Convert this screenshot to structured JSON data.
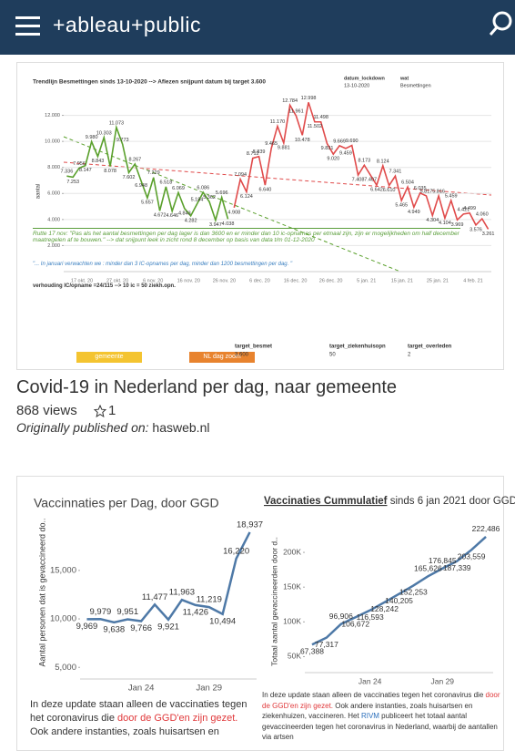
{
  "header": {
    "logo": "+ableau+public"
  },
  "cards": [
    {
      "thumbnail": {
        "chart_data": {
          "type": "line",
          "title": "Trendlijn Besmettingen sinds 13-10-2020 --> Aflezen snijpunt datum bij target 3.600",
          "y_label": "aantal",
          "categories": [
            null,
            null,
            null,
            null,
            null,
            null,
            null,
            null,
            null,
            null,
            null,
            null,
            null,
            null,
            null,
            null,
            null,
            null,
            null,
            null,
            null,
            null,
            null,
            null,
            null,
            null,
            null,
            null,
            null,
            null,
            null,
            null,
            null,
            null,
            null,
            null,
            null,
            null,
            null,
            null,
            null,
            null,
            null,
            null,
            null,
            null,
            null,
            null,
            null,
            null,
            null,
            null,
            null,
            null,
            null,
            null,
            null,
            null,
            null,
            null,
            null,
            null,
            null,
            null,
            null,
            null,
            null,
            null,
            null
          ],
          "xtick_labels": [
            "17 okt. 20",
            "27 okt. 20",
            "6 nov. 20",
            "16 nov. 20",
            "26 nov. 20",
            "6 dec. 20",
            "16 dec. 20",
            "26 dec. 20",
            "5 jan. 21",
            "15 jan. 21",
            "25 jan. 21",
            "4 feb. 21"
          ],
          "ylim": [
            0,
            13300
          ],
          "yticks": [
            {
              "value": 2000,
              "label": "2.000"
            },
            {
              "value": 4000,
              "label": "4.000"
            },
            {
              "value": 6000,
              "label": "6.000"
            },
            {
              "value": 8000,
              "label": "8.000"
            },
            {
              "value": 10000,
              "label": "10.000"
            },
            {
              "value": 12000,
              "label": "12.000"
            }
          ],
          "grid": true,
          "series": [
            {
              "color": "#5aa02c",
              "values": [
                7336,
                7253,
                7956,
                8147,
                9980,
                8843,
                10303,
                8078,
                11073,
                9773,
                7602,
                8267,
                6948,
                5657,
                7229,
                4672,
                6518,
                4646,
                6069,
                4843,
                4282,
                5184,
                6086,
                5362,
                3947,
                5696,
                4038,
                null,
                null,
                null,
                null,
                null,
                null,
                null,
                null,
                null,
                null,
                null,
                null,
                null,
                null,
                null,
                null,
                null,
                null,
                null,
                null,
                null,
                null,
                null,
                null,
                null,
                null,
                null,
                null,
                null,
                null,
                null,
                null,
                null,
                null,
                null,
                null,
                null,
                null,
                null,
                null,
                null,
                null
              ],
              "value_labels": [
                "7.336",
                "7.253",
                "7.956",
                "8.147",
                "9.980",
                "8.843",
                "10.303",
                "8.078",
                "11.073",
                "9.773",
                "7.602",
                "8.267",
                "6.948",
                "5.657",
                "7.229",
                "4.672",
                "6.518",
                "4.646",
                "6.069",
                "4.843",
                "4.282",
                "5.184",
                "6.086",
                "5.362",
                "3.947",
                "5.696",
                "4.038",
                null,
                null,
                null,
                null,
                null,
                null,
                null,
                null,
                null,
                null,
                null,
                null,
                null,
                null,
                null,
                null,
                null,
                null,
                null,
                null,
                null,
                null,
                null,
                null,
                null,
                null,
                null,
                null,
                null,
                null,
                null,
                null,
                null,
                null,
                null,
                null,
                null,
                null,
                null,
                null,
                null,
                null
              ]
            },
            {
              "color": "#e04a4a",
              "values": [
                null,
                null,
                null,
                null,
                null,
                null,
                null,
                null,
                null,
                null,
                null,
                null,
                null,
                null,
                null,
                null,
                null,
                null,
                null,
                null,
                null,
                null,
                null,
                null,
                null,
                null,
                null,
                4908,
                7094,
                6124,
                8712,
                8839,
                6640,
                9465,
                11170,
                9881,
                12784,
                11961,
                10478,
                12998,
                11502,
                11498,
                9831,
                9020,
                9669,
                9459,
                9690,
                7408,
                8173,
                7407,
                6642,
                8124,
                6610,
                7341,
                5465,
                6504,
                4949,
                6035,
                5817,
                4304,
                5816,
                4104,
                5459,
                3969,
                4421,
                4499,
                3576,
                4060,
                3261
              ],
              "value_labels": [
                null,
                null,
                null,
                null,
                null,
                null,
                null,
                null,
                null,
                null,
                null,
                null,
                null,
                null,
                null,
                null,
                null,
                null,
                null,
                null,
                null,
                null,
                null,
                null,
                null,
                null,
                null,
                "4.908",
                "7.094",
                "6.124",
                "8.712",
                "8.839",
                "6.640",
                "9.465",
                "11.170",
                "9.881",
                "12.784",
                "11.961",
                "10.478",
                "12.998",
                "11.502",
                "11.498",
                "9.831",
                "9.020",
                "9.669",
                "9.459",
                "9.690",
                "7.408",
                "8.173",
                "7.407",
                "6.642",
                "8.124",
                "6.610",
                "7.341",
                "5.465",
                "6.504",
                "4.949",
                "6.035",
                "5.817",
                "4.304",
                "5.816",
                "4.104",
                "5.459",
                "3.969",
                "4.421",
                "4.499",
                "3.576",
                "4.060",
                "3.261"
              ]
            }
          ]
        },
        "legend": {
          "lockdown_label": "datum_lockdown",
          "lockdown_value": "13-10-2020",
          "what_label": "wat",
          "what_value": "Besmettingen"
        },
        "note_rutte": "Rutte 17 nov:  \"Pas als het aantal besmettingen per dag lager is dan 3600 en er minder dan 10 ic-opnames per etmaal zijn, zijn er mogelijkheden om half december  maatregelen af te bouwen.\" --> dat snijpunt leek in zicht rond 8 december op basis van data t/m 01-12-2020",
        "note_january": "\"... In januari verwachten  we : minder dan 3 IC-opnames per dag, minder dan 1200 besmettingen per dag. \"",
        "ratio": "verhouding IC/opname =24/115 --> 10 ic = 50 ziekh.opn.",
        "targets": [
          {
            "label": "target_besmet",
            "value": "3.600"
          },
          {
            "label": "target_ziekenhuisopn",
            "value": "50"
          },
          {
            "label": "target_overleden",
            "value": "2"
          }
        ],
        "buttons": [
          "gemeente",
          "NL dag zoom"
        ]
      },
      "title": "Covid-19 in Nederland per dag, naar gemeente",
      "views": "868 views",
      "favorites": "1",
      "published_label": "Originally published on:",
      "published_source": "hasweb.nl"
    },
    {
      "thumbnail": {
        "chart_data": [
          {
            "type": "line",
            "title": "Vaccinnaties per Dag, door GGD",
            "y_label": "Aantal personen dat is gevaccineerd do..",
            "categories": [
              null,
              null,
              null,
              null,
              "Jan 24",
              null,
              null,
              null,
              null,
              "Jan 29",
              null,
              null,
              null
            ],
            "ylim": [
              3800,
              19500
            ],
            "yticks": [
              {
                "value": 5000,
                "label": "5,000"
              },
              {
                "value": 10000,
                "label": "10,000"
              },
              {
                "value": 15000,
                "label": "15,000"
              }
            ],
            "grid": false,
            "series": [
              {
                "color": "#4e79a7",
                "values": [
                  9969,
                  9979,
                  9638,
                  9951,
                  9766,
                  11477,
                  9921,
                  11963,
                  11426,
                  11219,
                  10494,
                  16220,
                  18937
                ],
                "value_labels": [
                  "9,969",
                  "9,979",
                  "9,638",
                  "9,951",
                  "9,766",
                  "11,477",
                  "9,921",
                  "11,963",
                  "11,426",
                  "11,219",
                  "10,494",
                  "16,220",
                  "18,937"
                ]
              }
            ]
          },
          {
            "type": "line",
            "title": "Vaccinaties Cummulatief",
            "subtitle": " sinds 6 jan 2021 door GGD",
            "y_label": "Totaal aantal gevaccineerden door d..",
            "categories": [
              null,
              null,
              null,
              null,
              "Jan 24",
              null,
              null,
              null,
              null,
              "Jan 29",
              null,
              null,
              null
            ],
            "ylim": [
              27000,
              225000
            ],
            "yticks": [
              {
                "value": 50000,
                "label": "50K"
              },
              {
                "value": 100000,
                "label": "100K"
              },
              {
                "value": 150000,
                "label": "150K"
              },
              {
                "value": 200000,
                "label": "200K"
              }
            ],
            "grid": false,
            "series": [
              {
                "color": "#4e79a7",
                "values": [
                  67388,
                  77317,
                  96906,
                  106672,
                  116593,
                  128242,
                  140205,
                  152253,
                  165626,
                  176845,
                  187339,
                  203559,
                  222486
                ],
                "value_labels": [
                  "67,388",
                  "77,317",
                  "96,906",
                  "106,672",
                  "116,593",
                  "128,242",
                  "140,205",
                  "152,253",
                  "165,626",
                  "176,845",
                  "187,339",
                  "203,559",
                  "222,486"
                ]
              }
            ]
          }
        ],
        "note_left": [
          "In deze update staan alleen de vaccinaties tegen het coronavirus die ",
          "door de GGD'en zijn gezet.",
          " Ook andere instanties, zoals huisartsen en"
        ],
        "note_right": [
          "In deze update staan alleen de vaccinaties tegen het coronavirus die ",
          "door de GGD'en zijn gezet.",
          " Ook andere instanties, zoals huisartsen en ziekenhuizen, vaccineren. Het ",
          "RIVM",
          " publiceert het totaal aantal gevaccineerden tegen het coronavirus in Nederland, waarbij de aantallen via artsen"
        ]
      }
    }
  ]
}
